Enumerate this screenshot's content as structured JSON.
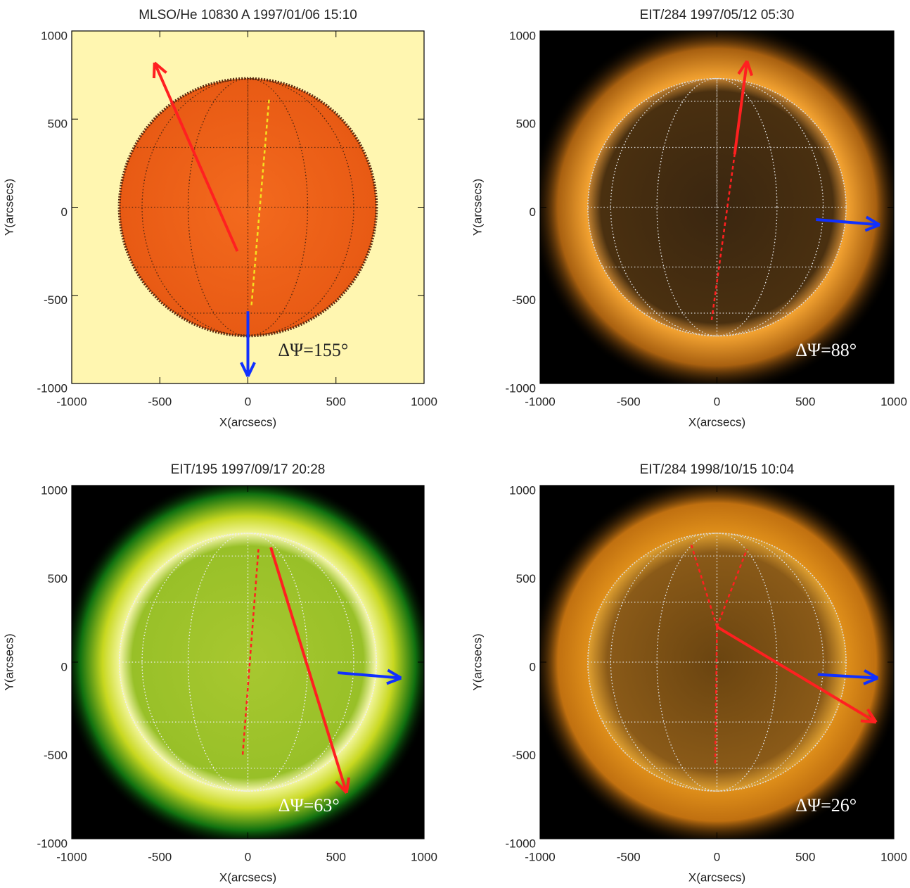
{
  "chart_data": [
    {
      "type": "image",
      "title": "MLSO/He 10830 A 1997/01/06 15:10",
      "xlabel": "X(arcsecs)",
      "ylabel": "Y(arcsecs)",
      "xlim": [
        -1000,
        1000
      ],
      "ylim": [
        -1000,
        1000
      ],
      "xticks": [
        -1000,
        -500,
        0,
        500,
        1000
      ],
      "yticks": [
        -1000,
        -500,
        0,
        500,
        1000
      ],
      "annotation": "ΔΨ=155°"
    },
    {
      "type": "image",
      "title": "EIT/284 1997/05/12 05:30",
      "xlabel": "X(arcsecs)",
      "ylabel": "Y(arcsecs)",
      "xlim": [
        -1000,
        1000
      ],
      "ylim": [
        -1000,
        1000
      ],
      "xticks": [
        -1000,
        -500,
        0,
        500,
        1000
      ],
      "yticks": [
        -1000,
        -500,
        0,
        500,
        1000
      ],
      "annotation": "ΔΨ=88°"
    },
    {
      "type": "image",
      "title": "EIT/195 1997/09/17 20:28",
      "xlabel": "X(arcsecs)",
      "ylabel": "Y(arcsecs)",
      "xlim": [
        -1000,
        1000
      ],
      "ylim": [
        -1000,
        1000
      ],
      "xticks": [
        -1000,
        -500,
        0,
        500,
        1000
      ],
      "yticks": [
        -1000,
        -500,
        0,
        500,
        1000
      ],
      "annotation": "ΔΨ=63°"
    },
    {
      "type": "image",
      "title": "EIT/284 1998/10/15 10:04",
      "xlabel": "X(arcsecs)",
      "ylabel": "Y(arcsecs)",
      "xlim": [
        -1000,
        1000
      ],
      "ylim": [
        -1000,
        1000
      ],
      "xticks": [
        -1000,
        -500,
        0,
        500,
        1000
      ],
      "yticks": [
        -1000,
        -500,
        0,
        500,
        1000
      ],
      "annotation": "ΔΨ=26°"
    }
  ]
}
